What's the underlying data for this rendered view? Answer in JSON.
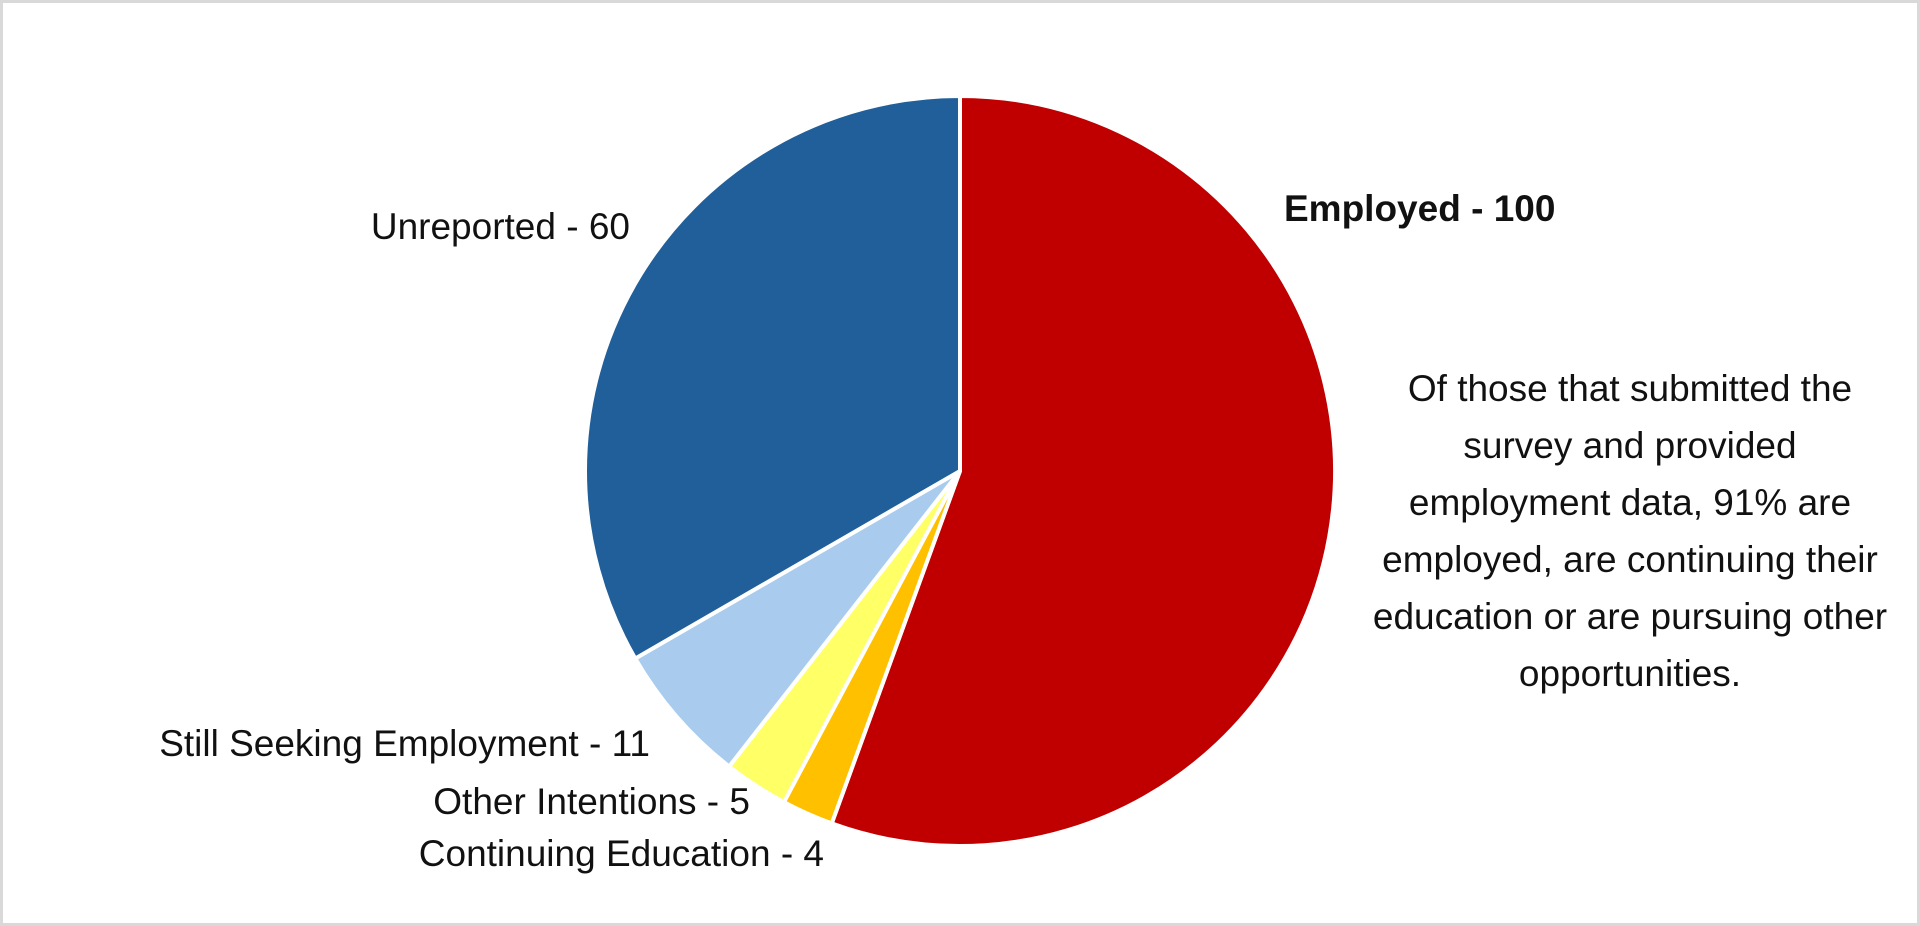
{
  "chart_data": {
    "type": "pie",
    "start_angle_deg": 0,
    "direction": "clockwise",
    "slices": [
      {
        "label": "Employed - 100",
        "name": "Employed",
        "value": 100,
        "color": "#C00000",
        "bold": true
      },
      {
        "label": "Continuing Education - 4",
        "name": "Continuing Education",
        "value": 4,
        "color": "#FFC000",
        "bold": false
      },
      {
        "label": "Other Intentions - 5",
        "name": "Other Intentions",
        "value": 5,
        "color": "#FFFF66",
        "bold": false
      },
      {
        "label": "Still Seeking Employment - 11",
        "name": "Still Seeking Employment",
        "value": 11,
        "color": "#A9CCEE",
        "bold": false
      },
      {
        "label": "Unreported - 60",
        "name": "Unreported",
        "value": 60,
        "color": "#215F9A",
        "bold": false
      }
    ],
    "annotation": "Of those that submitted the survey and provided employment data, 91% are employed, are continuing their education or are pursuing other opportunities."
  }
}
